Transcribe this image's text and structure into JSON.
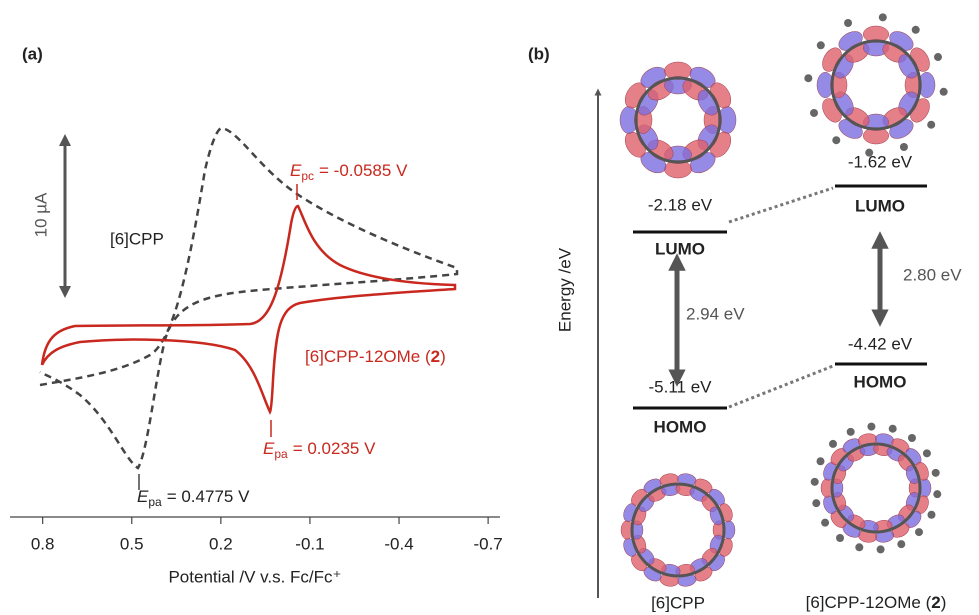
{
  "panel_a": {
    "label": "(a)",
    "scale_bar": "10 µA",
    "curve_label_cpp": "[6]CPP",
    "curve_label_ome": {
      "text": "[6]CPP-12OMe (",
      "bold": "2",
      "close": ")"
    },
    "annotations": [
      {
        "symbol": "E",
        "subscript": "pc",
        "text": "= -0.0585 V"
      },
      {
        "symbol": "E",
        "subscript": "pa",
        "text": "= 0.0235 V"
      },
      {
        "symbol": "E",
        "subscript": "pa",
        "text": "= 0.4775 V"
      }
    ],
    "x_axis": {
      "title": "Potential /V v.s. Fc/Fc⁺",
      "xlim": [
        0.91,
        -0.74
      ],
      "xticks": [
        0.8,
        0.5,
        0.2,
        -0.1,
        -0.4,
        -0.7
      ]
    }
  },
  "panel_b": {
    "label": "(b)",
    "axis_title": "Energy /eV",
    "cpp": {
      "lumo_energy": "-2.18 eV",
      "lumo": "LUMO",
      "homo_energy": "-5.11 eV",
      "homo": "HOMO",
      "gap": "2.94 eV",
      "name": "[6]CPP"
    },
    "ome": {
      "lumo_energy": "-1.62 eV",
      "lumo": "LUMO",
      "homo_energy": "-4.42 eV",
      "homo": "HOMO",
      "gap": "2.80 eV",
      "name": {
        "text": "[6]CPP-12OMe (",
        "bold": "2",
        "close": ")"
      }
    }
  }
}
